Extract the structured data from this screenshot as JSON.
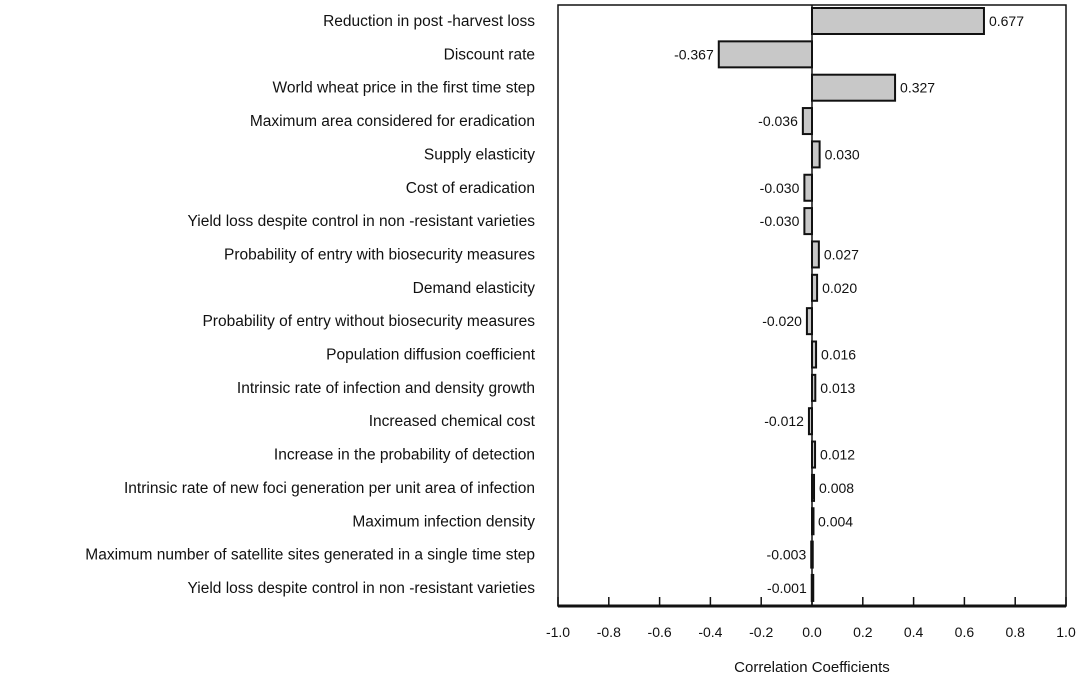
{
  "chart_data": {
    "type": "bar",
    "orientation": "horizontal",
    "categories": [
      "Reduction in post -harvest loss",
      "Discount rate",
      "World wheat price in the first time step",
      "Maximum area considered for eradication",
      "Supply elasticity",
      "Cost of eradication",
      "Yield loss despite control in non -resistant varieties",
      "Probability of entry with biosecurity measures",
      "Demand elasticity",
      "Probability of entry without biosecurity measures",
      "Population diffusion coefficient",
      "Intrinsic rate of infection and density growth",
      "Increased chemical cost",
      "Increase in the probability of detection",
      "Intrinsic rate of new foci generation per unit area of infection",
      "Maximum infection density",
      "Maximum number of satellite sites generated in a single time step",
      "Yield loss despite control in non -resistant varieties"
    ],
    "values": [
      0.677,
      -0.367,
      0.327,
      -0.036,
      0.03,
      -0.03,
      -0.03,
      0.027,
      0.02,
      -0.02,
      0.016,
      0.013,
      -0.012,
      0.012,
      0.008,
      0.004,
      -0.003,
      -0.001
    ],
    "value_labels": [
      "0.677",
      "-0.367",
      "0.327",
      "-0.036",
      "0.030",
      "-0.030",
      "-0.030",
      "0.027",
      "0.020",
      "-0.020",
      "0.016",
      "0.013",
      "-0.012",
      "0.012",
      "0.008",
      "0.004",
      "-0.003",
      "-0.001"
    ],
    "xlabel": "Correlation Coefficients",
    "xlim": [
      -1.0,
      1.0
    ],
    "xticks": [
      "-1.0",
      "-0.8",
      "-0.6",
      "-0.4",
      "-0.2",
      "0.0",
      "0.2",
      "0.4",
      "0.6",
      "0.8",
      "1.0"
    ],
    "grid": false,
    "bar_color": "#c8c8c8",
    "edge_color": "#111111"
  }
}
